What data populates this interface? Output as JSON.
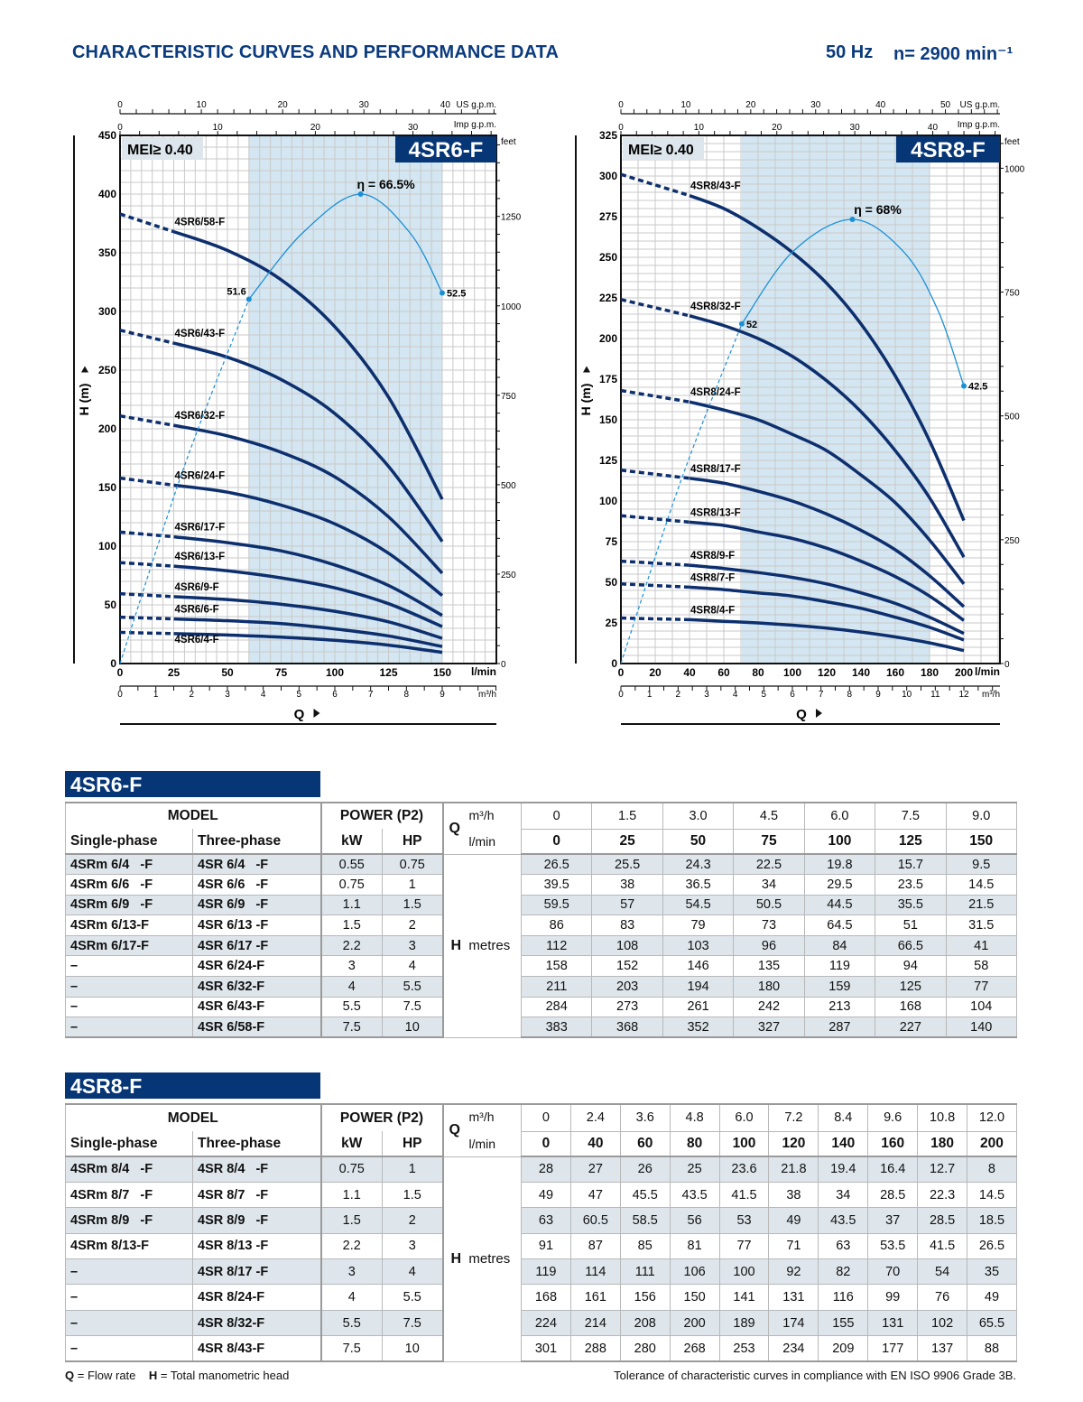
{
  "header": {
    "title": "CHARACTERISTIC CURVES AND PERFORMANCE DATA",
    "frequency": "50 Hz",
    "speed": "n= 2900 min⁻¹"
  },
  "colors": {
    "brand_navy": "#073677",
    "title_blue": "#0b3b7e",
    "pump_curve": "#0d2f6e",
    "efficiency_curve": "#1b8fd6",
    "best_efficiency_band": "#d3e6f1",
    "row_shade": "#dee6ec"
  },
  "chart_data": [
    {
      "type": "line",
      "model": "4SR6-F",
      "mei": "MEI≥ 0.40",
      "x_unit": "l/min",
      "x_ticks": [
        0,
        25,
        50,
        75,
        100,
        125,
        150
      ],
      "xlim": [
        0,
        175
      ],
      "y_label": "H (m)",
      "y_ticks": [
        0,
        50,
        100,
        150,
        200,
        250,
        300,
        350,
        400,
        450
      ],
      "ylim": [
        0,
        450
      ],
      "feet_label": "feet",
      "feet_ticks": [
        0,
        250,
        500,
        750,
        1000,
        1250
      ],
      "us_gpm_label": "US g.p.m.",
      "us_gpm_ticks": [
        0,
        10,
        20,
        30,
        40
      ],
      "imp_gpm_label": "Imp g.p.m.",
      "imp_gpm_ticks": [
        0,
        10,
        20,
        30
      ],
      "m3h_label": "m³/h",
      "m3h_ticks": [
        0,
        1,
        2,
        3,
        4,
        5,
        6,
        7,
        8,
        9
      ],
      "q_label": "Q",
      "grid": true,
      "best_efficiency_range": [
        60,
        150
      ],
      "efficiency": {
        "peak_label": "η = 66.5%",
        "curve": [
          [
            0,
            0
          ],
          [
            30,
            28
          ],
          [
            60,
            51.6
          ],
          [
            85,
            61
          ],
          [
            112,
            66.5
          ],
          [
            135,
            61
          ],
          [
            150,
            52.5
          ]
        ],
        "marked": [
          {
            "q": 60,
            "eta": 51.6,
            "label": "51.6"
          },
          {
            "q": 112,
            "eta": 66.5,
            "label": ""
          },
          {
            "q": 150,
            "eta": 52.5,
            "label": "52.5"
          }
        ]
      },
      "x": [
        0,
        25,
        50,
        75,
        100,
        125,
        150
      ],
      "series": [
        {
          "name": "4SR6/4-F",
          "values": [
            26.5,
            25.5,
            24.3,
            22.5,
            19.8,
            15.7,
            9.5
          ]
        },
        {
          "name": "4SR6/6-F",
          "values": [
            39.5,
            38,
            36.5,
            34,
            29.5,
            23.5,
            14.5
          ]
        },
        {
          "name": "4SR6/9-F",
          "values": [
            59.5,
            57,
            54.5,
            50.5,
            44.5,
            35.5,
            21.5
          ]
        },
        {
          "name": "4SR6/13-F",
          "values": [
            86,
            83,
            79,
            73,
            64.5,
            51,
            31.5
          ]
        },
        {
          "name": "4SR6/17-F",
          "values": [
            112,
            108,
            103,
            96,
            84,
            66.5,
            41
          ]
        },
        {
          "name": "4SR6/24-F",
          "values": [
            158,
            152,
            146,
            135,
            119,
            94,
            58
          ]
        },
        {
          "name": "4SR6/32-F",
          "values": [
            211,
            203,
            194,
            180,
            159,
            125,
            77
          ]
        },
        {
          "name": "4SR6/43-F",
          "values": [
            284,
            273,
            261,
            242,
            213,
            168,
            104
          ]
        },
        {
          "name": "4SR6/58-F",
          "values": [
            383,
            368,
            352,
            327,
            287,
            227,
            140
          ]
        }
      ]
    },
    {
      "type": "line",
      "model": "4SR8-F",
      "mei": "MEI≥ 0.40",
      "x_unit": "l/min",
      "x_ticks": [
        0,
        20,
        40,
        60,
        80,
        100,
        120,
        140,
        160,
        180,
        200
      ],
      "xlim": [
        0,
        221
      ],
      "y_label": "H (m)",
      "y_ticks": [
        0,
        25,
        50,
        75,
        100,
        125,
        150,
        175,
        200,
        225,
        250,
        275,
        300,
        325
      ],
      "ylim": [
        0,
        325
      ],
      "feet_label": "feet",
      "feet_ticks": [
        0,
        250,
        500,
        750,
        1000
      ],
      "us_gpm_label": "US g.p.m.",
      "us_gpm_ticks": [
        0,
        10,
        20,
        30,
        40,
        50
      ],
      "imp_gpm_label": "Imp g.p.m.",
      "imp_gpm_ticks": [
        0,
        10,
        20,
        30,
        40
      ],
      "m3h_label": "m³/h",
      "m3h_ticks": [
        0,
        1,
        2,
        3,
        4,
        5,
        6,
        7,
        8,
        9,
        10,
        11,
        12
      ],
      "q_label": "Q",
      "grid": true,
      "best_efficiency_range": [
        70.5,
        180
      ],
      "efficiency": {
        "peak_label": "η = 68%",
        "curve": [
          [
            0,
            0
          ],
          [
            35,
            28
          ],
          [
            70.5,
            52
          ],
          [
            100,
            63
          ],
          [
            135,
            68
          ],
          [
            165,
            63
          ],
          [
            185,
            54
          ],
          [
            200,
            42.5
          ]
        ],
        "marked": [
          {
            "q": 70.5,
            "eta": 52,
            "label": "52"
          },
          {
            "q": 135,
            "eta": 68,
            "label": ""
          },
          {
            "q": 200,
            "eta": 42.5,
            "label": "42.5"
          }
        ]
      },
      "x": [
        0,
        40,
        60,
        80,
        100,
        120,
        140,
        160,
        180,
        200
      ],
      "series": [
        {
          "name": "4SR8/4-F",
          "values": [
            28,
            27,
            26,
            25,
            23.6,
            21.8,
            19.4,
            16.4,
            12.7,
            8
          ]
        },
        {
          "name": "4SR8/7-F",
          "values": [
            49,
            47,
            45.5,
            43.5,
            41.5,
            38,
            34,
            28.5,
            22.3,
            14.5
          ]
        },
        {
          "name": "4SR8/9-F",
          "values": [
            63,
            60.5,
            58.5,
            56,
            53,
            49,
            43.5,
            37,
            28.5,
            18.5
          ]
        },
        {
          "name": "4SR8/13-F",
          "values": [
            91,
            87,
            85,
            81,
            77,
            71,
            63,
            53.5,
            41.5,
            26.5
          ]
        },
        {
          "name": "4SR8/17-F",
          "values": [
            119,
            114,
            111,
            106,
            100,
            92,
            82,
            70,
            54,
            35
          ]
        },
        {
          "name": "4SR8/24-F",
          "values": [
            168,
            161,
            156,
            150,
            141,
            131,
            116,
            99,
            76,
            49
          ]
        },
        {
          "name": "4SR8/32-F",
          "values": [
            224,
            214,
            208,
            200,
            189,
            174,
            155,
            131,
            102,
            65.5
          ]
        },
        {
          "name": "4SR8/43-F",
          "values": [
            301,
            288,
            280,
            268,
            253,
            234,
            209,
            177,
            137,
            88
          ]
        }
      ]
    }
  ],
  "tables": [
    {
      "title": "4SR6-F",
      "labels": {
        "model": "MODEL",
        "power": "POWER (P2)",
        "single": "Single-phase",
        "three": "Three-phase",
        "kw": "kW",
        "hp": "HP",
        "q": "Q",
        "m3h": "m³/h",
        "lmin": "l/min",
        "h": "H",
        "metres": "metres"
      },
      "m3h": [
        "0",
        "1.5",
        "3.0",
        "4.5",
        "6.0",
        "7.5",
        "9.0"
      ],
      "lmin": [
        "0",
        "25",
        "50",
        "75",
        "100",
        "125",
        "150"
      ],
      "rows": [
        {
          "single": "4SRm 6/4   -F",
          "three": "4SR 6/4   -F",
          "kw": "0.55",
          "hp": "0.75",
          "h": [
            "26.5",
            "25.5",
            "24.3",
            "22.5",
            "19.8",
            "15.7",
            "9.5"
          ]
        },
        {
          "single": "4SRm 6/6   -F",
          "three": "4SR 6/6   -F",
          "kw": "0.75",
          "hp": "1",
          "h": [
            "39.5",
            "38",
            "36.5",
            "34",
            "29.5",
            "23.5",
            "14.5"
          ]
        },
        {
          "single": "4SRm 6/9   -F",
          "three": "4SR 6/9   -F",
          "kw": "1.1",
          "hp": "1.5",
          "h": [
            "59.5",
            "57",
            "54.5",
            "50.5",
            "44.5",
            "35.5",
            "21.5"
          ]
        },
        {
          "single": "4SRm 6/13-F",
          "three": "4SR 6/13 -F",
          "kw": "1.5",
          "hp": "2",
          "h": [
            "86",
            "83",
            "79",
            "73",
            "64.5",
            "51",
            "31.5"
          ]
        },
        {
          "single": "4SRm 6/17-F",
          "three": "4SR 6/17 -F",
          "kw": "2.2",
          "hp": "3",
          "h": [
            "112",
            "108",
            "103",
            "96",
            "84",
            "66.5",
            "41"
          ]
        },
        {
          "single": "–",
          "three": "4SR 6/24-F",
          "kw": "3",
          "hp": "4",
          "h": [
            "158",
            "152",
            "146",
            "135",
            "119",
            "94",
            "58"
          ]
        },
        {
          "single": "–",
          "three": "4SR 6/32-F",
          "kw": "4",
          "hp": "5.5",
          "h": [
            "211",
            "203",
            "194",
            "180",
            "159",
            "125",
            "77"
          ]
        },
        {
          "single": "–",
          "three": "4SR 6/43-F",
          "kw": "5.5",
          "hp": "7.5",
          "h": [
            "284",
            "273",
            "261",
            "242",
            "213",
            "168",
            "104"
          ]
        },
        {
          "single": "–",
          "three": "4SR 6/58-F",
          "kw": "7.5",
          "hp": "10",
          "h": [
            "383",
            "368",
            "352",
            "327",
            "287",
            "227",
            "140"
          ]
        }
      ]
    },
    {
      "title": "4SR8-F",
      "labels": {
        "model": "MODEL",
        "power": "POWER (P2)",
        "single": "Single-phase",
        "three": "Three-phase",
        "kw": "kW",
        "hp": "HP",
        "q": "Q",
        "m3h": "m³/h",
        "lmin": "l/min",
        "h": "H",
        "metres": "metres"
      },
      "m3h": [
        "0",
        "2.4",
        "3.6",
        "4.8",
        "6.0",
        "7.2",
        "8.4",
        "9.6",
        "10.8",
        "12.0"
      ],
      "lmin": [
        "0",
        "40",
        "60",
        "80",
        "100",
        "120",
        "140",
        "160",
        "180",
        "200"
      ],
      "rows": [
        {
          "single": "4SRm 8/4   -F",
          "three": "4SR 8/4   -F",
          "kw": "0.75",
          "hp": "1",
          "h": [
            "28",
            "27",
            "26",
            "25",
            "23.6",
            "21.8",
            "19.4",
            "16.4",
            "12.7",
            "8"
          ]
        },
        {
          "single": "4SRm 8/7   -F",
          "three": "4SR 8/7   -F",
          "kw": "1.1",
          "hp": "1.5",
          "h": [
            "49",
            "47",
            "45.5",
            "43.5",
            "41.5",
            "38",
            "34",
            "28.5",
            "22.3",
            "14.5"
          ]
        },
        {
          "single": "4SRm 8/9   -F",
          "three": "4SR 8/9   -F",
          "kw": "1.5",
          "hp": "2",
          "h": [
            "63",
            "60.5",
            "58.5",
            "56",
            "53",
            "49",
            "43.5",
            "37",
            "28.5",
            "18.5"
          ]
        },
        {
          "single": "4SRm 8/13-F",
          "three": "4SR 8/13 -F",
          "kw": "2.2",
          "hp": "3",
          "h": [
            "91",
            "87",
            "85",
            "81",
            "77",
            "71",
            "63",
            "53.5",
            "41.5",
            "26.5"
          ]
        },
        {
          "single": "–",
          "three": "4SR 8/17 -F",
          "kw": "3",
          "hp": "4",
          "h": [
            "119",
            "114",
            "111",
            "106",
            "100",
            "92",
            "82",
            "70",
            "54",
            "35"
          ]
        },
        {
          "single": "–",
          "three": "4SR 8/24-F",
          "kw": "4",
          "hp": "5.5",
          "h": [
            "168",
            "161",
            "156",
            "150",
            "141",
            "131",
            "116",
            "99",
            "76",
            "49"
          ]
        },
        {
          "single": "–",
          "three": "4SR 8/32-F",
          "kw": "5.5",
          "hp": "7.5",
          "h": [
            "224",
            "214",
            "208",
            "200",
            "189",
            "174",
            "155",
            "131",
            "102",
            "65.5"
          ]
        },
        {
          "single": "–",
          "three": "4SR 8/43-F",
          "kw": "7.5",
          "hp": "10",
          "h": [
            "301",
            "288",
            "280",
            "268",
            "253",
            "234",
            "209",
            "177",
            "137",
            "88"
          ]
        }
      ]
    }
  ],
  "footer": {
    "q_key": "Q",
    "q_text": " = Flow rate",
    "h_key": "H",
    "h_text": " = Total manometric head",
    "tolerance": "Tolerance of characteristic curves in compliance with EN ISO 9906 Grade 3B."
  }
}
